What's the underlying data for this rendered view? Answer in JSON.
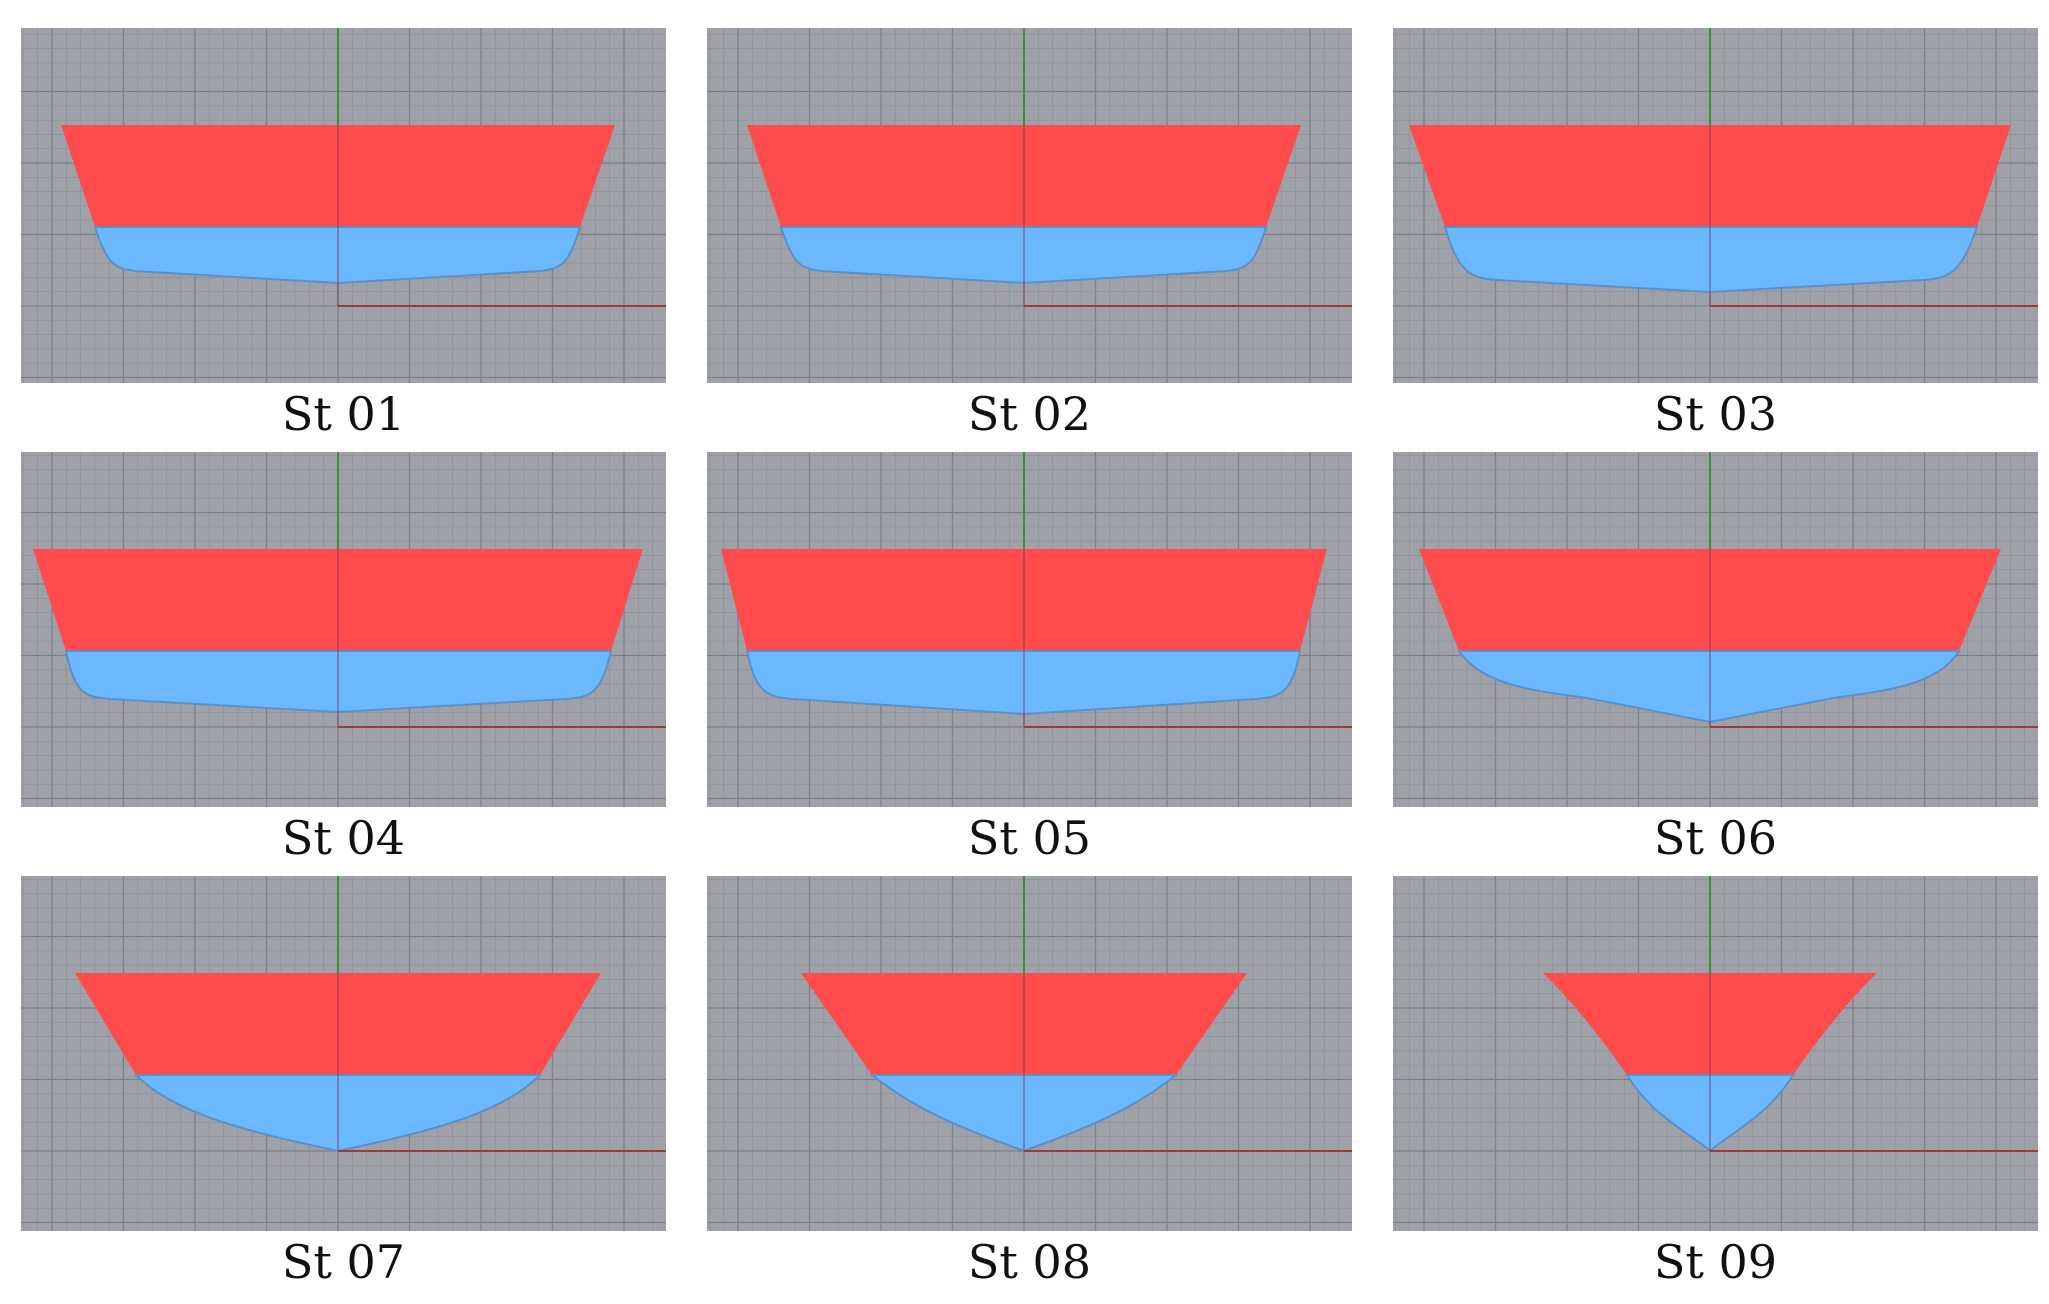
{
  "colors": {
    "viewport_background": "#9ea2a8",
    "grid_minor": "#8c9096",
    "grid_major": "#7c8086",
    "above_waterline": "#ff4b4b",
    "below_waterline": "#6cb8ff",
    "hull_outline": "#5b8fc9",
    "y_axis": "#3d8f3d",
    "x_axis": "#9b3b3b"
  },
  "stations": [
    {
      "label": "St 01"
    },
    {
      "label": "St 02"
    },
    {
      "label": "St 03"
    },
    {
      "label": "St 04"
    },
    {
      "label": "St 05"
    },
    {
      "label": "St 06"
    },
    {
      "label": "St 07"
    },
    {
      "label": "St 08"
    },
    {
      "label": "St 09"
    }
  ]
}
